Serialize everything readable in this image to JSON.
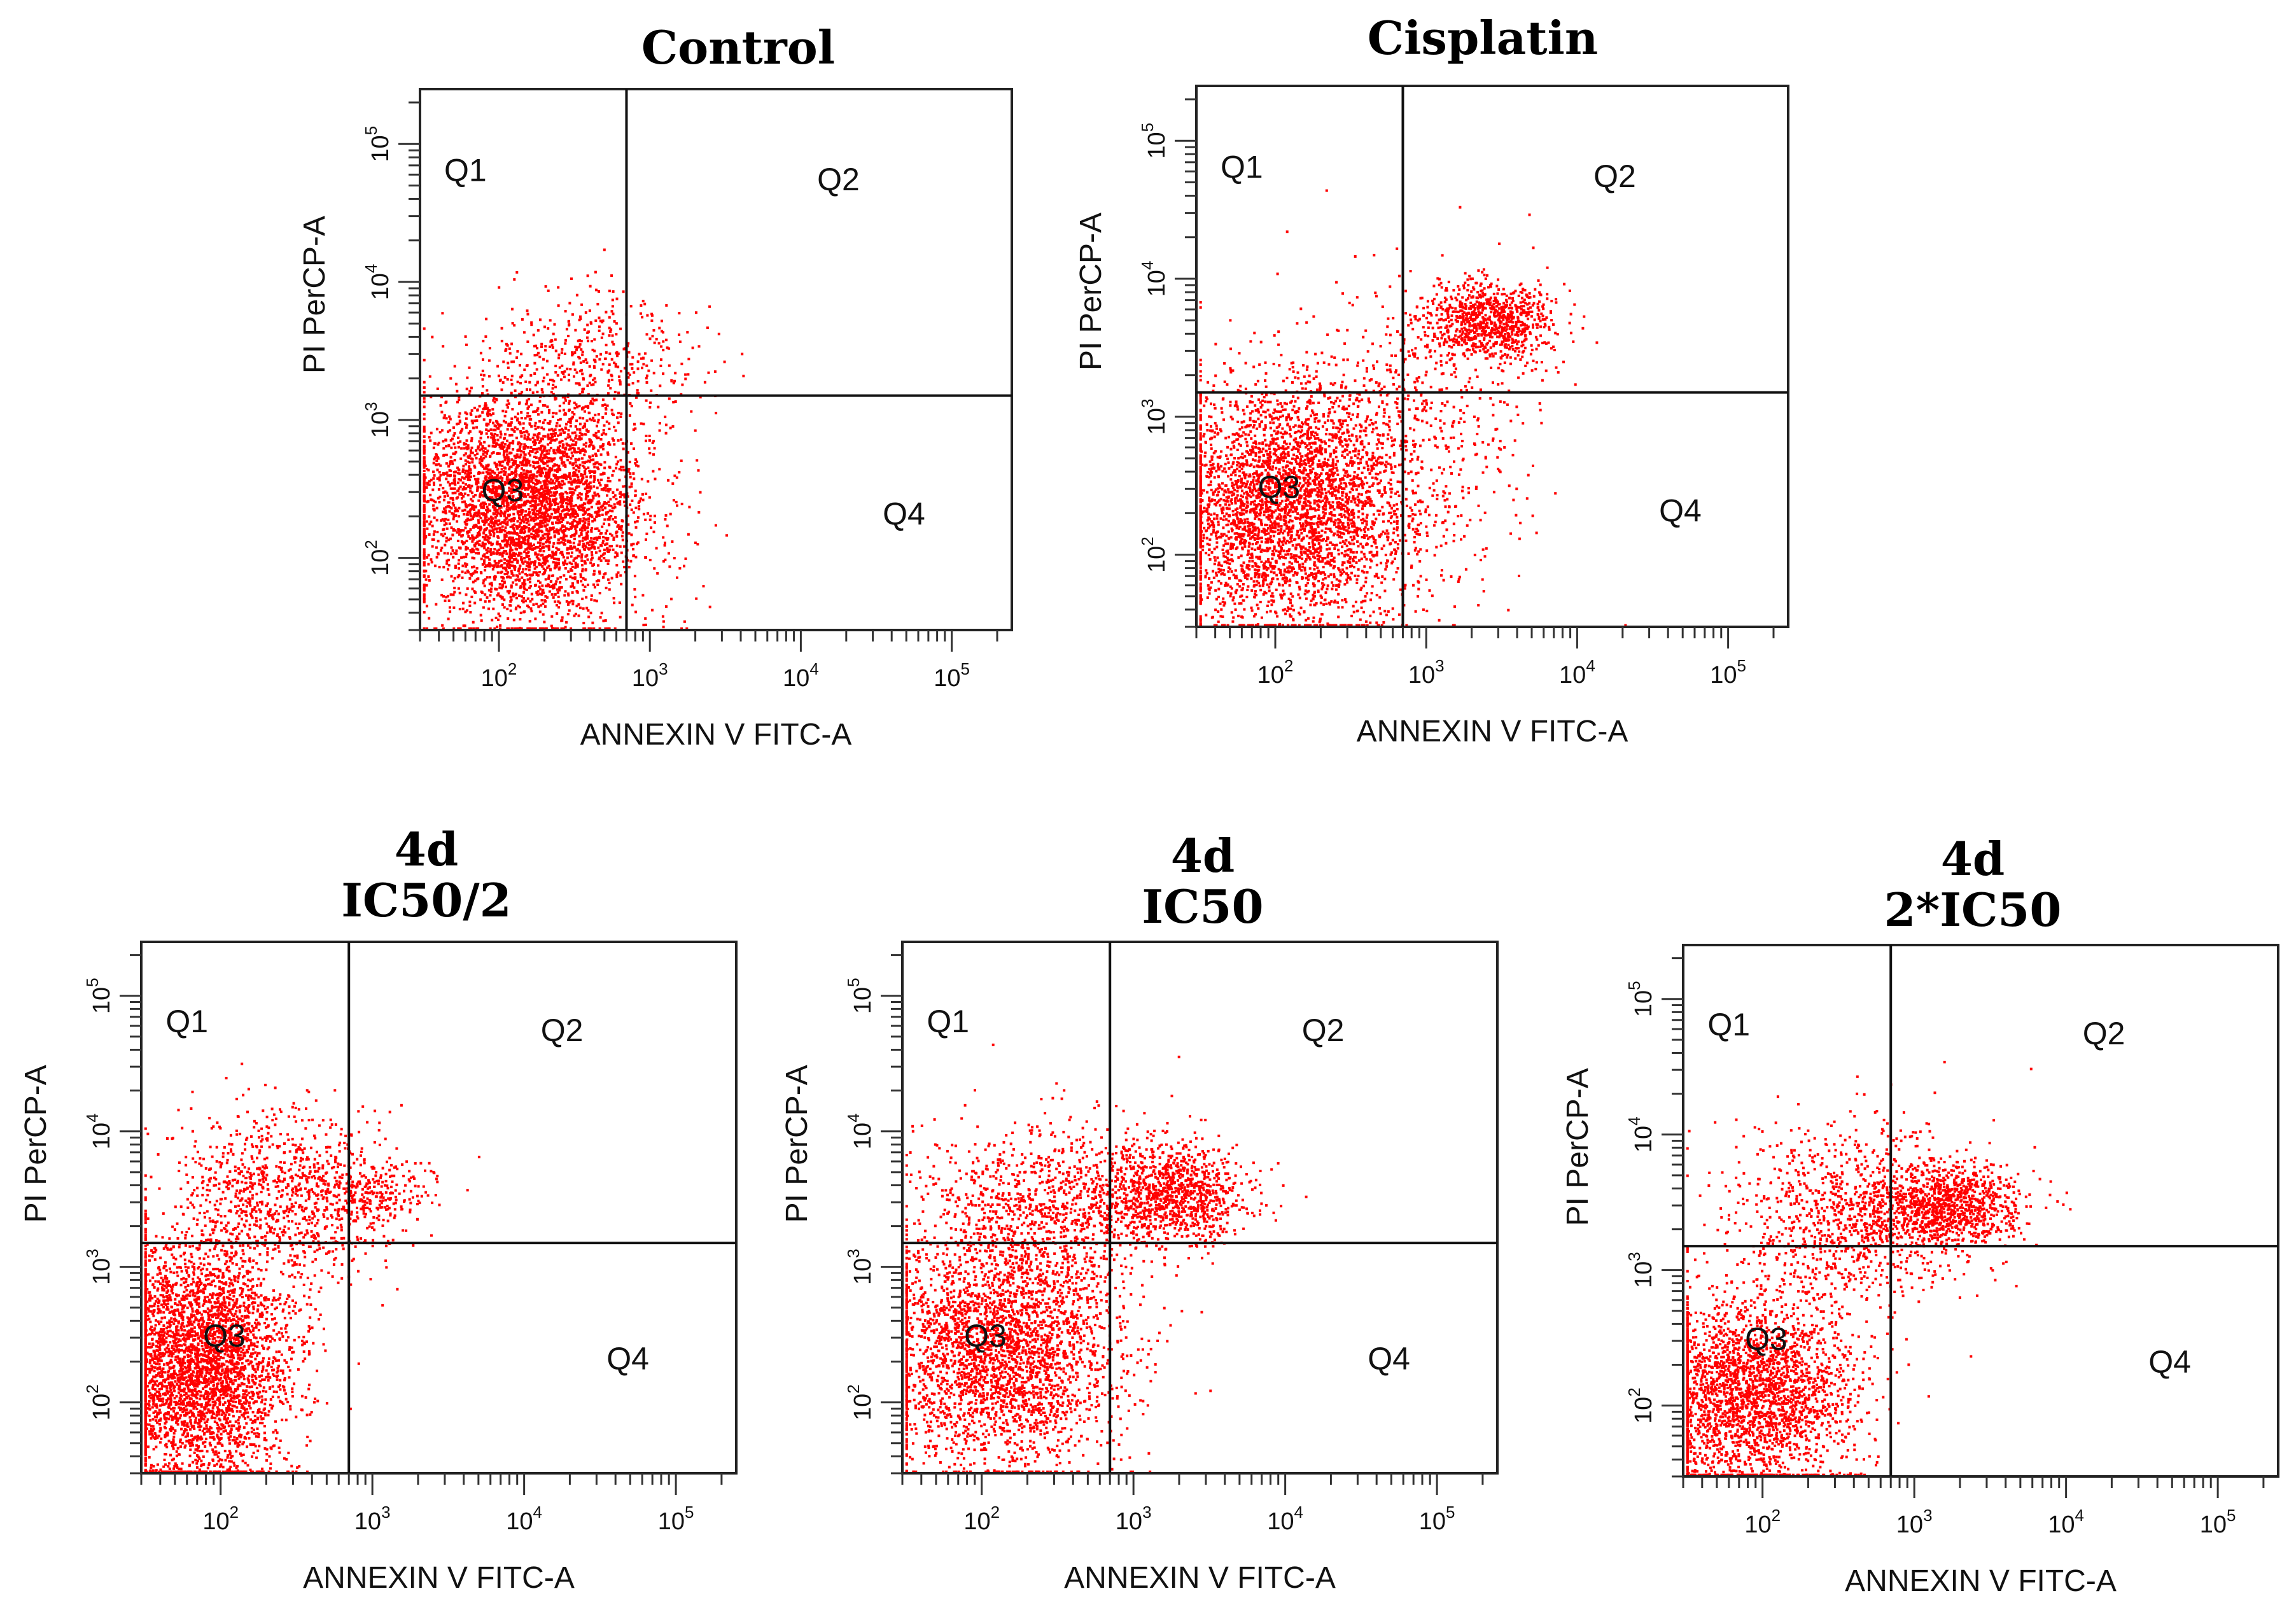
{
  "chart_data": [
    {
      "type": "scatter",
      "title": [
        "Control"
      ],
      "xlabel": "ANNEXIN V FITC-A",
      "ylabel": "PI PerCP-A",
      "x_scale": "log",
      "y_scale": "log",
      "xlim": [
        30,
        250000
      ],
      "ylim": [
        30,
        250000
      ],
      "xticks": [
        "10^2",
        "10^3",
        "10^4",
        "10^5"
      ],
      "yticks": [
        "10^2",
        "10^3",
        "10^4",
        "10^5"
      ],
      "gate": {
        "x": 700,
        "y": 1500
      },
      "quadrants": [
        "Q1",
        "Q2",
        "Q3",
        "Q4"
      ],
      "color": "#ff0000",
      "clusters": [
        {
          "x_center": 150,
          "y_center": 250,
          "x_spread_decades": 0.38,
          "y_spread_decades": 0.42,
          "points": 4200
        },
        {
          "x_center": 450,
          "y_center": 3000,
          "x_spread_decades": 0.35,
          "y_spread_decades": 0.25,
          "points": 350
        }
      ]
    },
    {
      "type": "scatter",
      "title": [
        "Cisplatin"
      ],
      "xlabel": "ANNEXIN V FITC-A",
      "ylabel": "PI PerCP-A",
      "x_scale": "log",
      "y_scale": "log",
      "xlim": [
        30,
        250000
      ],
      "ylim": [
        30,
        250000
      ],
      "xticks": [
        "10^2",
        "10^3",
        "10^4",
        "10^5"
      ],
      "yticks": [
        "10^2",
        "10^3",
        "10^4",
        "10^5"
      ],
      "gate": {
        "x": 700,
        "y": 1500
      },
      "quadrants": [
        "Q1",
        "Q2",
        "Q3",
        "Q4"
      ],
      "color": "#ff0000",
      "clusters": [
        {
          "x_center": 120,
          "y_center": 220,
          "x_spread_decades": 0.4,
          "y_spread_decades": 0.45,
          "points": 3600
        },
        {
          "x_center": 2500,
          "y_center": 5000,
          "x_spread_decades": 0.2,
          "y_spread_decades": 0.14,
          "points": 900
        },
        {
          "x_center": 700,
          "y_center": 800,
          "x_spread_decades": 0.45,
          "y_spread_decades": 0.55,
          "points": 600
        }
      ]
    },
    {
      "type": "scatter",
      "title": [
        "4d",
        "IC50/2"
      ],
      "xlabel": "ANNEXIN V FITC-A",
      "ylabel": "PI PerCP-A",
      "x_scale": "log",
      "y_scale": "log",
      "xlim": [
        30,
        250000
      ],
      "ylim": [
        30,
        250000
      ],
      "xticks": [
        "10^2",
        "10^3",
        "10^4",
        "10^5"
      ],
      "yticks": [
        "10^2",
        "10^3",
        "10^4",
        "10^5"
      ],
      "gate": {
        "x": 700,
        "y": 1500
      },
      "quadrants": [
        "Q1",
        "Q2",
        "Q3",
        "Q4"
      ],
      "color": "#ff0000",
      "clusters": [
        {
          "x_center": 70,
          "y_center": 200,
          "x_spread_decades": 0.3,
          "y_spread_decades": 0.45,
          "points": 3800
        },
        {
          "x_center": 250,
          "y_center": 3500,
          "x_spread_decades": 0.35,
          "y_spread_decades": 0.3,
          "points": 900
        },
        {
          "x_center": 1000,
          "y_center": 3500,
          "x_spread_decades": 0.2,
          "y_spread_decades": 0.15,
          "points": 250
        }
      ]
    },
    {
      "type": "scatter",
      "title": [
        "4d",
        "IC50"
      ],
      "xlabel": "ANNEXIN V FITC-A",
      "ylabel": "PI PerCP-A",
      "x_scale": "log",
      "y_scale": "log",
      "xlim": [
        30,
        250000
      ],
      "ylim": [
        30,
        250000
      ],
      "xticks": [
        "10^2",
        "10^3",
        "10^4",
        "10^5"
      ],
      "yticks": [
        "10^2",
        "10^3",
        "10^4",
        "10^5"
      ],
      "gate": {
        "x": 700,
        "y": 1500
      },
      "quadrants": [
        "Q1",
        "Q2",
        "Q3",
        "Q4"
      ],
      "color": "#ff0000",
      "clusters": [
        {
          "x_center": 130,
          "y_center": 250,
          "x_spread_decades": 0.4,
          "y_spread_decades": 0.45,
          "points": 3000
        },
        {
          "x_center": 1800,
          "y_center": 3500,
          "x_spread_decades": 0.25,
          "y_spread_decades": 0.18,
          "points": 1000
        },
        {
          "x_center": 300,
          "y_center": 3000,
          "x_spread_decades": 0.4,
          "y_spread_decades": 0.3,
          "points": 900
        }
      ]
    },
    {
      "type": "scatter",
      "title": [
        "4d",
        "2*IC50"
      ],
      "xlabel": "ANNEXIN V FITC-A",
      "ylabel": "PI PerCP-A",
      "x_scale": "log",
      "y_scale": "log",
      "xlim": [
        30,
        250000
      ],
      "ylim": [
        30,
        250000
      ],
      "xticks": [
        "10^2",
        "10^3",
        "10^4",
        "10^5"
      ],
      "yticks": [
        "10^2",
        "10^3",
        "10^4",
        "10^5"
      ],
      "gate": {
        "x": 700,
        "y": 1500
      },
      "quadrants": [
        "Q1",
        "Q2",
        "Q3",
        "Q4"
      ],
      "color": "#ff0000",
      "clusters": [
        {
          "x_center": 80,
          "y_center": 120,
          "x_spread_decades": 0.35,
          "y_spread_decades": 0.35,
          "points": 2600
        },
        {
          "x_center": 1600,
          "y_center": 3000,
          "x_spread_decades": 0.25,
          "y_spread_decades": 0.15,
          "points": 1000
        },
        {
          "x_center": 350,
          "y_center": 2500,
          "x_spread_decades": 0.4,
          "y_spread_decades": 0.35,
          "points": 1000
        }
      ]
    }
  ]
}
